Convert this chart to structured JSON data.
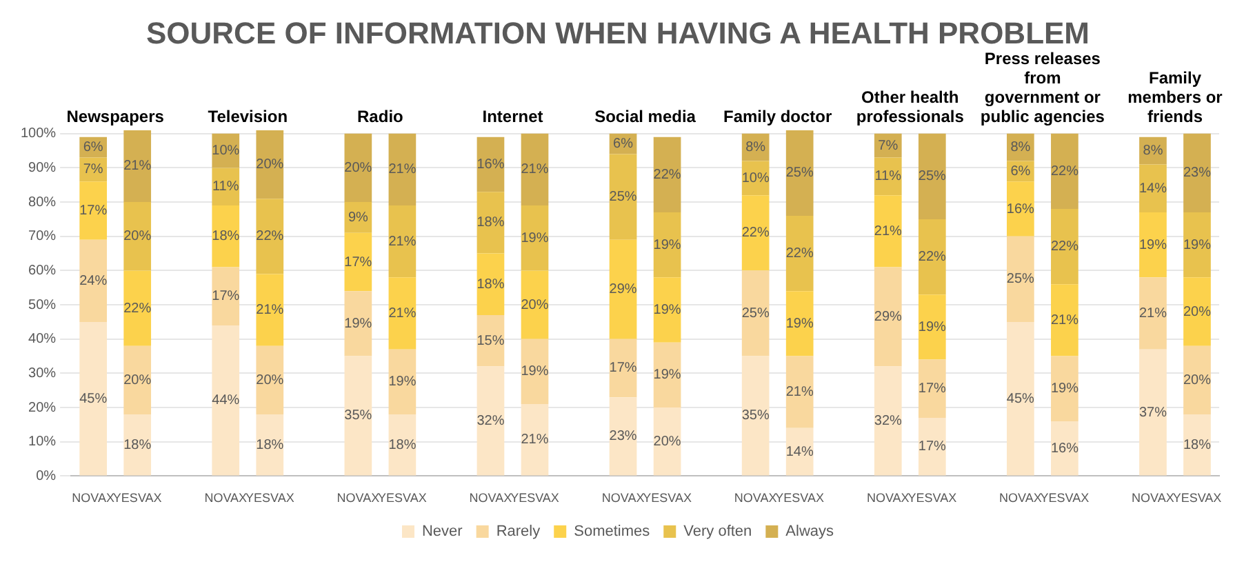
{
  "chart_data": {
    "type": "bar",
    "stacked": true,
    "title": "SOURCE OF INFORMATION WHEN HAVING A HEALTH PROBLEM",
    "categories": [
      "NOVAX",
      "YESVAX",
      null,
      "NOVAX",
      "YESVAX",
      null,
      "NOVAX",
      "YESVAX",
      null,
      "NOVAX",
      "YESVAX",
      null,
      "NOVAX",
      "YESVAX",
      null,
      "NOVAX",
      "YESVAX",
      null,
      "NOVAX",
      "YESVAX",
      null,
      "NOVAX",
      "YESVAX",
      null,
      "NOVAX",
      "YESVAX"
    ],
    "series": [
      {
        "name": "Never",
        "color": "#fce6c6",
        "values": [
          45,
          18,
          null,
          44,
          18,
          null,
          35,
          18,
          null,
          32,
          21,
          null,
          23,
          20,
          null,
          35,
          14,
          null,
          32,
          17,
          null,
          45,
          16,
          null,
          37,
          18
        ],
        "value_labels": [
          "45%",
          "18%",
          null,
          "44%",
          "18%",
          null,
          "35%",
          "18%",
          null,
          "32%",
          "21%",
          null,
          "23%",
          "20%",
          null,
          "35%",
          "14%",
          null,
          "32%",
          "17%",
          null,
          "45%",
          "16%",
          null,
          "37%",
          "18%"
        ]
      },
      {
        "name": "Rarely",
        "color": "#f9d89e",
        "values": [
          24,
          20,
          null,
          17,
          20,
          null,
          19,
          19,
          null,
          15,
          19,
          null,
          17,
          19,
          null,
          25,
          21,
          null,
          29,
          17,
          null,
          25,
          19,
          null,
          21,
          20
        ],
        "value_labels": [
          "24%",
          "20%",
          null,
          "17%",
          "20%",
          null,
          "19%",
          "19%",
          null,
          "15%",
          "19%",
          null,
          "17%",
          "19%",
          null,
          "25%",
          "21%",
          null,
          "29%",
          "17%",
          null,
          "25%",
          "19%",
          null,
          "21%",
          "20%"
        ]
      },
      {
        "name": "Sometimes",
        "color": "#fcd24c",
        "values": [
          17,
          22,
          null,
          18,
          21,
          null,
          17,
          21,
          null,
          18,
          20,
          null,
          29,
          19,
          null,
          22,
          19,
          null,
          21,
          19,
          null,
          16,
          21,
          null,
          19,
          20
        ],
        "value_labels": [
          "17%",
          "22%",
          null,
          "18%",
          "21%",
          null,
          "17%",
          "21%",
          null,
          "18%",
          "20%",
          null,
          "29%",
          "19%",
          null,
          "22%",
          "19%",
          null,
          "21%",
          "19%",
          null,
          "16%",
          "21%",
          null,
          "19%",
          "20%"
        ]
      },
      {
        "name": "Very often",
        "color": "#e8c24e",
        "values": [
          7,
          20,
          null,
          11,
          22,
          null,
          9,
          21,
          null,
          18,
          19,
          null,
          25,
          19,
          null,
          10,
          22,
          null,
          11,
          22,
          null,
          6,
          22,
          null,
          14,
          19
        ],
        "value_labels": [
          "7%",
          "20%",
          null,
          "11%",
          "22%",
          null,
          "9%",
          "21%",
          null,
          "18%",
          "19%",
          null,
          "25%",
          "19%",
          null,
          "10%",
          "22%",
          null,
          "11%",
          "22%",
          null,
          "6%",
          "22%",
          null,
          "14%",
          "19%"
        ]
      },
      {
        "name": "Always",
        "color": "#d4b052",
        "values": [
          6,
          21,
          null,
          10,
          20,
          null,
          20,
          21,
          null,
          16,
          21,
          null,
          6,
          22,
          null,
          8,
          25,
          null,
          7,
          25,
          null,
          8,
          22,
          null,
          8,
          23
        ],
        "value_labels": [
          "6%",
          "21%",
          null,
          "10%",
          "20%",
          null,
          "20%",
          "21%",
          null,
          "16%",
          "21%",
          null,
          "6%",
          "22%",
          null,
          "8%",
          "25%",
          null,
          "7%",
          "25%",
          null,
          "8%",
          "22%",
          null,
          "8%",
          "23%"
        ]
      }
    ],
    "annotations": [
      "Newspapers",
      "Television",
      "Radio",
      "Internet",
      "Social media",
      "Family doctor",
      "Other health professionals",
      "Press releases from government or public agencies",
      "Family members or friends"
    ],
    "ylim": [
      0,
      101
    ],
    "yticks": [
      {
        "value": 0,
        "label": "0%"
      },
      {
        "value": 10,
        "label": "10%"
      },
      {
        "value": 20,
        "label": "20%"
      },
      {
        "value": 30,
        "label": "30%"
      },
      {
        "value": 40,
        "label": "40%"
      },
      {
        "value": 50,
        "label": "50%"
      },
      {
        "value": 60,
        "label": "60%"
      },
      {
        "value": 70,
        "label": "70%"
      },
      {
        "value": 80,
        "label": "80%"
      },
      {
        "value": 90,
        "label": "90%"
      },
      {
        "value": 100,
        "label": "100%"
      }
    ],
    "grid": "y",
    "legend": "bottom"
  }
}
